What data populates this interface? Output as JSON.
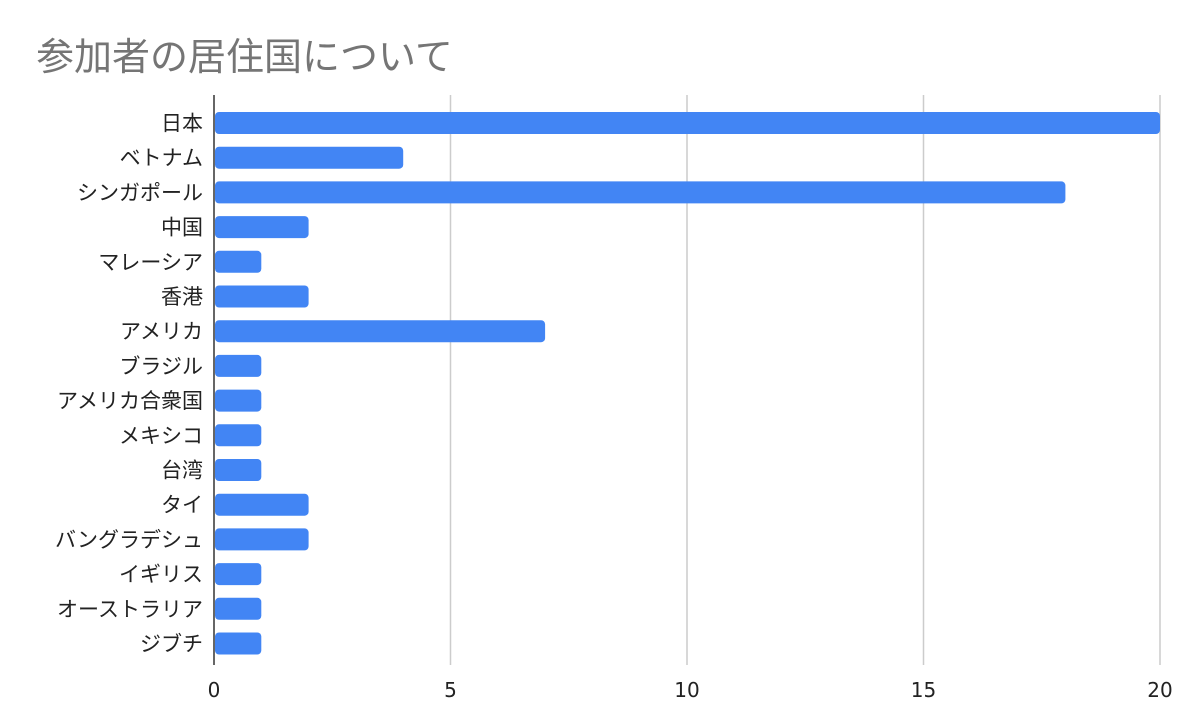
{
  "chart_data": {
    "type": "bar",
    "orientation": "horizontal",
    "title": "参加者の居住国について",
    "xlabel": "",
    "ylabel": "",
    "xlim": [
      0,
      20
    ],
    "x_ticks": [
      "0",
      "5",
      "10",
      "15",
      "20"
    ],
    "grid": true,
    "legend": "none",
    "bar_color": "#4285f4",
    "categories": [
      "日本",
      "ベトナム",
      "シンガポール",
      "中国",
      "マレーシア",
      "香港",
      "アメリカ",
      "ブラジル",
      "アメリカ合衆国",
      "メキシコ",
      "台湾",
      "タイ",
      "バングラデシュ",
      "イギリス",
      "オーストラリア",
      "ジブチ"
    ],
    "values": [
      20,
      4,
      18,
      2,
      1,
      2,
      7,
      1,
      1,
      1,
      1,
      2,
      2,
      1,
      1,
      1
    ]
  }
}
